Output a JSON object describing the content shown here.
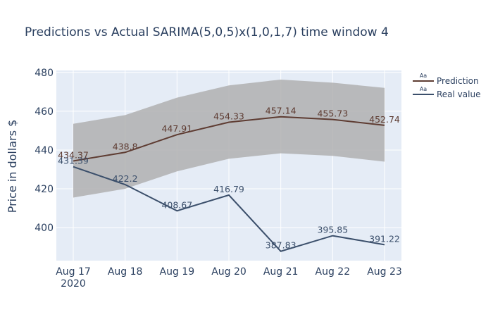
{
  "chart_data": {
    "type": "line",
    "title": "Predictions vs Actual SARIMA(5,0,5)x(1,0,1,7) time window 4",
    "xlabel": "",
    "ylabel": "Price in dollars $",
    "categories": [
      "Aug 17",
      "Aug 18",
      "Aug 19",
      "Aug 20",
      "Aug 21",
      "Aug 22",
      "Aug 23"
    ],
    "year_label": "2020",
    "ylim": [
      383,
      481
    ],
    "yticks": [
      400,
      420,
      440,
      460,
      480
    ],
    "grid": true,
    "legend_position": "top-right",
    "confidence_band": {
      "upper": [
        453.5,
        458.0,
        467.0,
        473.3,
        476.3,
        474.7,
        472.0
      ],
      "lower": [
        415.5,
        420.0,
        429.0,
        435.5,
        438.3,
        437.0,
        434.0
      ],
      "color": "#b0b0b0"
    },
    "series": [
      {
        "name": "Prediction",
        "color": "#5e3c32",
        "values": [
          434.37,
          438.8,
          447.91,
          454.33,
          457.14,
          455.73,
          452.74
        ],
        "labels": [
          "434.37",
          "438.8",
          "447.91",
          "454.33",
          "457.14",
          "455.73",
          "452.74"
        ]
      },
      {
        "name": "Real value",
        "color": "#3b4f6b",
        "values": [
          431.39,
          422.2,
          408.67,
          416.79,
          387.83,
          395.85,
          391.22
        ],
        "labels": [
          "431.39",
          "422.2",
          "408.67",
          "416.79",
          "387.83",
          "395.85",
          "391.22"
        ]
      }
    ],
    "legend_symbol_text": "Aa"
  }
}
